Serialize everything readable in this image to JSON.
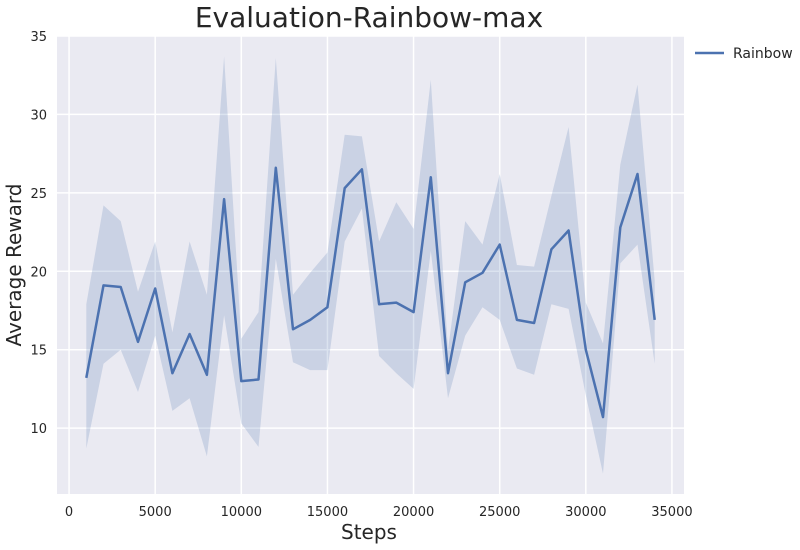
{
  "chart_data": {
    "type": "line",
    "title": "Evaluation-Rainbow-max",
    "xlabel": "Steps",
    "ylabel": "Average Reward",
    "xlim": [
      -700,
      35700
    ],
    "ylim": [
      5.8,
      35
    ],
    "xticks": [
      0,
      5000,
      10000,
      15000,
      20000,
      25000,
      30000,
      35000
    ],
    "yticks": [
      10,
      15,
      20,
      25,
      30,
      35
    ],
    "grid": true,
    "legend_position": "outside-top-right",
    "series": [
      {
        "name": "Rainbow",
        "color": "#4c72b0",
        "band_color": "#4c72b0",
        "x": [
          1000,
          2000,
          3000,
          4000,
          5000,
          6000,
          7000,
          8000,
          9000,
          10000,
          11000,
          12000,
          13000,
          14000,
          15000,
          16000,
          17000,
          18000,
          19000,
          20000,
          21000,
          22000,
          23000,
          24000,
          25000,
          26000,
          27000,
          28000,
          29000,
          30000,
          31000,
          32000,
          33000,
          34000
        ],
        "y": [
          13.2,
          19.1,
          19.0,
          15.5,
          18.9,
          13.5,
          16.0,
          13.4,
          24.6,
          13.0,
          13.1,
          26.6,
          16.3,
          16.9,
          17.7,
          25.3,
          26.5,
          17.9,
          18.0,
          17.4,
          26.0,
          13.5,
          19.3,
          19.9,
          21.7,
          16.9,
          16.7,
          21.4,
          22.6,
          15.0,
          10.7,
          22.8,
          26.2,
          16.9
        ],
        "lower": [
          8.7,
          14.1,
          15.0,
          12.3,
          15.9,
          11.1,
          11.9,
          8.2,
          17.2,
          10.3,
          8.8,
          20.8,
          14.2,
          13.7,
          13.7,
          21.9,
          24.0,
          14.6,
          13.5,
          12.5,
          21.3,
          11.9,
          15.9,
          17.7,
          16.9,
          13.8,
          13.4,
          17.9,
          17.6,
          12.1,
          7.1,
          20.5,
          21.7,
          14.1
        ],
        "upper": [
          17.9,
          24.2,
          23.2,
          18.7,
          21.9,
          16.1,
          21.9,
          18.5,
          33.7,
          15.7,
          17.4,
          33.6,
          18.5,
          19.9,
          21.2,
          28.7,
          28.6,
          21.9,
          24.4,
          22.7,
          32.2,
          15.0,
          23.2,
          21.7,
          26.2,
          20.4,
          20.3,
          24.8,
          29.2,
          18.0,
          15.4,
          26.8,
          31.9,
          19.4
        ]
      }
    ]
  }
}
